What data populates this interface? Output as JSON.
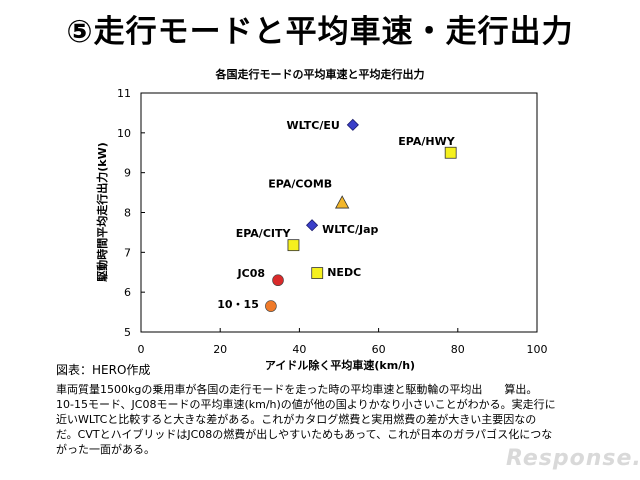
{
  "slide_title": "⑤走行モードと平均車速・走行出力",
  "source": "図表：HERO作成",
  "caption": [
    "車両質量1500kgの乗用車が各国の走行モードを走った時の平均車速と駆動輪の平均出　　算出。",
    "10-15モード、JC08モードの平均車速(km/h)の値が他の国よりかなり小さいことがわかる。実走行に",
    "近いWLTCと比較すると大きな差がある。これがカタログ燃費と実用燃費の差が大きい主要因なの",
    "だ。CVTとハイブリッドはJC08の燃費が出しやすいためもあって、これが日本のガラパゴス化につな",
    "がった一面がある。"
  ],
  "watermark": "Response.",
  "chart_data": {
    "type": "scatter",
    "title": "各国走行モードの平均車速と平均走行出力",
    "xlabel": "アイドル除く平均車速(km/h)",
    "ylabel": "駆動時間平均走行出力(kW)",
    "xlim": [
      0,
      100
    ],
    "ylim": [
      5,
      11
    ],
    "xticks": [
      0,
      20,
      40,
      60,
      80,
      100
    ],
    "yticks": [
      5,
      6,
      7,
      8,
      9,
      10,
      11
    ],
    "points": [
      {
        "label": "WLTC/EU",
        "x": 53.5,
        "y": 10.2,
        "marker": "diamond",
        "color": "#3a3fc9"
      },
      {
        "label": "EPA/HWY",
        "x": 78.2,
        "y": 9.5,
        "marker": "square",
        "color": "#f5f01e"
      },
      {
        "label": "EPA/COMB",
        "x": 50.8,
        "y": 8.25,
        "marker": "triangle",
        "color": "#f2b62a"
      },
      {
        "label": "WLTC/Jap",
        "x": 43.2,
        "y": 7.68,
        "marker": "diamond",
        "color": "#3a3fc9"
      },
      {
        "label": "EPA/CITY",
        "x": 38.5,
        "y": 7.18,
        "marker": "square",
        "color": "#f5f01e"
      },
      {
        "label": "NEDC",
        "x": 44.5,
        "y": 6.48,
        "marker": "square",
        "color": "#f5f01e"
      },
      {
        "label": "JC08",
        "x": 34.6,
        "y": 6.3,
        "marker": "circle",
        "color": "#d92a2a"
      },
      {
        "label": "10・15",
        "x": 32.8,
        "y": 5.65,
        "marker": "circle",
        "color": "#ef7a2a"
      }
    ]
  }
}
